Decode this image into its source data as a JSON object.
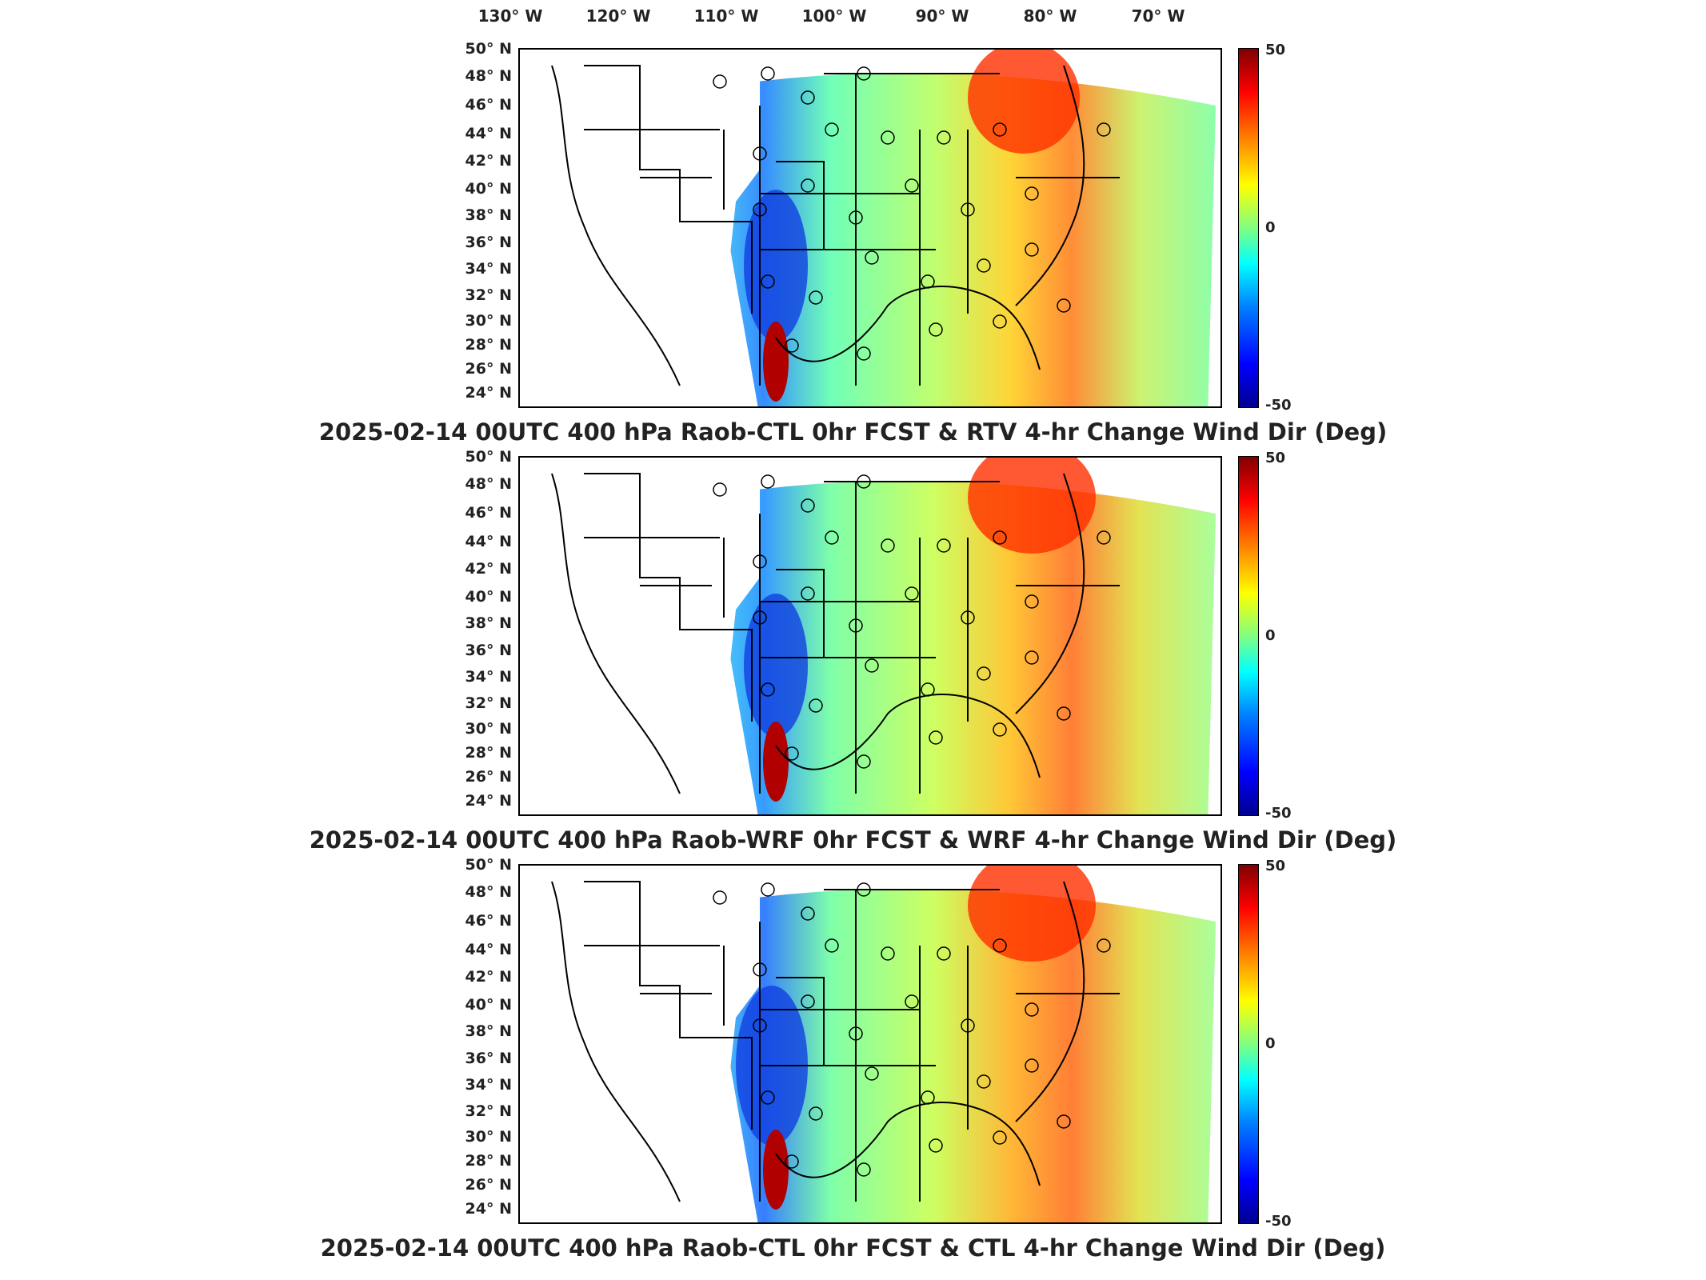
{
  "longitude_labels": [
    "130° W",
    "120° W",
    "110° W",
    "100° W",
    "90° W",
    "80° W",
    "70° W"
  ],
  "latitude_labels": [
    "50° N",
    "48° N",
    "46° N",
    "44° N",
    "42° N",
    "40° N",
    "38° N",
    "36° N",
    "34° N",
    "32° N",
    "30° N",
    "28° N",
    "26° N",
    "24° N"
  ],
  "colorbar": {
    "max": "50",
    "mid": "0",
    "min": "-50"
  },
  "panels": [
    {
      "title": "2025-02-14 00UTC 400 hPa Raob-CTL 0hr FCST & RTV 4-hr Change Wind Dir (Deg)"
    },
    {
      "title": "2025-02-14 00UTC 400 hPa Raob-WRF 0hr FCST & WRF 4-hr Change Wind Dir (Deg)"
    },
    {
      "title": "2025-02-14 00UTC 400 hPa Raob-CTL 0hr FCST & CTL 4-hr Change Wind Dir (Deg)"
    }
  ],
  "colors": {
    "strong_negative": "#00008f",
    "neutral": "#80ff80",
    "strong_positive": "#800000"
  }
}
